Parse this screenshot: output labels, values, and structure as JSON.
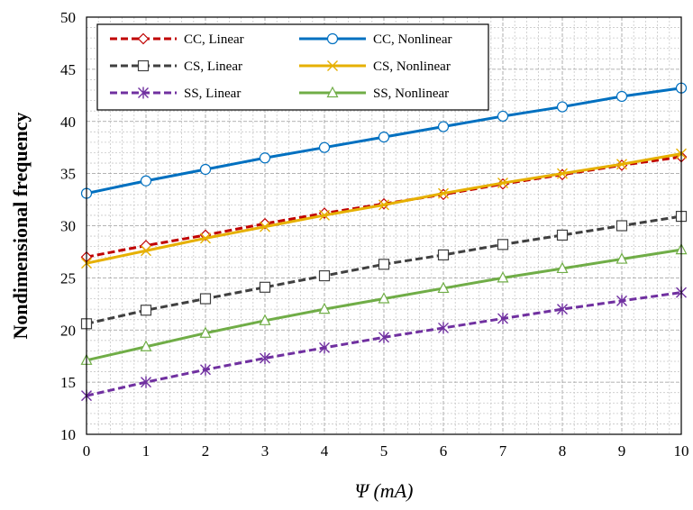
{
  "chart_data": {
    "type": "line",
    "xlabel": "Ψ (mA)",
    "ylabel": "Nondimensional frequency",
    "xlim": [
      0,
      10
    ],
    "ylim": [
      10,
      50
    ],
    "x_ticks": [
      0,
      1,
      2,
      3,
      4,
      5,
      6,
      7,
      8,
      9,
      10
    ],
    "y_ticks": [
      10,
      15,
      20,
      25,
      30,
      35,
      40,
      45,
      50
    ],
    "grid": true,
    "legend_position": "top-left",
    "legend_columns": 2,
    "x": [
      0,
      1,
      2,
      3,
      4,
      5,
      6,
      7,
      8,
      9,
      10
    ],
    "series": [
      {
        "name": "CC, Linear",
        "color": "#C00000",
        "dash": "dashed",
        "marker": "diamond",
        "values": [
          27.0,
          28.1,
          29.1,
          30.2,
          31.2,
          32.1,
          33.0,
          34.0,
          34.9,
          35.8,
          36.6
        ]
      },
      {
        "name": "CC, Nonlinear",
        "color": "#0070C0",
        "dash": "solid",
        "marker": "circle",
        "values": [
          33.1,
          34.3,
          35.4,
          36.5,
          37.5,
          38.5,
          39.5,
          40.5,
          41.4,
          42.4,
          43.2
        ]
      },
      {
        "name": "CS, Linear",
        "color": "#404040",
        "dash": "dashed",
        "marker": "square",
        "values": [
          20.6,
          21.9,
          23.0,
          24.1,
          25.2,
          26.3,
          27.2,
          28.2,
          29.1,
          30.0,
          30.9
        ]
      },
      {
        "name": "CS, Nonlinear",
        "color": "#E6B000",
        "dash": "solid",
        "marker": "x",
        "values": [
          26.4,
          27.6,
          28.8,
          29.9,
          31.0,
          32.0,
          33.1,
          34.1,
          35.0,
          35.9,
          36.9
        ]
      },
      {
        "name": "SS, Linear",
        "color": "#7030A0",
        "dash": "dashed",
        "marker": "asterisk",
        "values": [
          13.7,
          15.0,
          16.2,
          17.3,
          18.3,
          19.3,
          20.2,
          21.1,
          22.0,
          22.8,
          23.6
        ]
      },
      {
        "name": "SS, Nonlinear",
        "color": "#70AD47",
        "dash": "solid",
        "marker": "triangle",
        "values": [
          17.1,
          18.4,
          19.7,
          20.9,
          22.0,
          23.0,
          24.0,
          25.0,
          25.9,
          26.8,
          27.7
        ]
      }
    ]
  }
}
